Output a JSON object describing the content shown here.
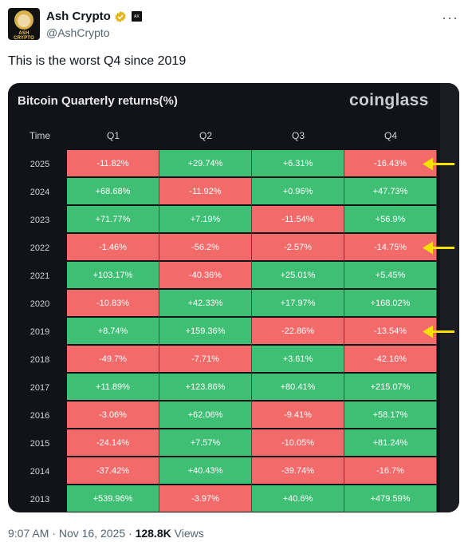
{
  "author": {
    "name": "Ash Crypto",
    "handle": "@AshCrypto",
    "avatar_text": "ASH CRYPTO",
    "affiliate_text": "AX"
  },
  "tweet": {
    "text": "This is the worst Q4 since 2019"
  },
  "chart_data": {
    "type": "table",
    "title": "Bitcoin Quarterly returns(%)",
    "source_logo": "coinglass",
    "columns": [
      "Time",
      "Q1",
      "Q2",
      "Q3",
      "Q4"
    ],
    "rows": [
      {
        "year": "2025",
        "values": [
          "-11.82%",
          "+29.74%",
          "+6.31%",
          "-16.43%"
        ]
      },
      {
        "year": "2024",
        "values": [
          "+68.68%",
          "-11.92%",
          "+0.96%",
          "+47.73%"
        ]
      },
      {
        "year": "2023",
        "values": [
          "+71.77%",
          "+7.19%",
          "-11.54%",
          "+56.9%"
        ]
      },
      {
        "year": "2022",
        "values": [
          "-1.46%",
          "-56.2%",
          "-2.57%",
          "-14.75%"
        ]
      },
      {
        "year": "2021",
        "values": [
          "+103.17%",
          "-40.36%",
          "+25.01%",
          "+5.45%"
        ]
      },
      {
        "year": "2020",
        "values": [
          "-10.83%",
          "+42.33%",
          "+17.97%",
          "+168.02%"
        ]
      },
      {
        "year": "2019",
        "values": [
          "+8.74%",
          "+159.36%",
          "-22.86%",
          "-13.54%"
        ]
      },
      {
        "year": "2018",
        "values": [
          "-49.7%",
          "-7.71%",
          "+3.61%",
          "-42.16%"
        ]
      },
      {
        "year": "2017",
        "values": [
          "+11.89%",
          "+123.86%",
          "+80.41%",
          "+215.07%"
        ]
      },
      {
        "year": "2016",
        "values": [
          "-3.06%",
          "+62.06%",
          "-9.41%",
          "+58.17%"
        ]
      },
      {
        "year": "2015",
        "values": [
          "-24.14%",
          "+7.57%",
          "-10.05%",
          "+81.24%"
        ]
      },
      {
        "year": "2014",
        "values": [
          "-37.42%",
          "+40.43%",
          "-39.74%",
          "-16.7%"
        ]
      },
      {
        "year": "2013",
        "values": [
          "+539.96%",
          "-3.97%",
          "+40.6%",
          "+479.59%"
        ]
      }
    ],
    "highlighted_years": [
      "2025",
      "2022",
      "2019"
    ],
    "colors": {
      "positive": "#3fbf74",
      "negative": "#f36a6a",
      "arrow": "#f5e100"
    }
  },
  "footer": {
    "time": "9:07 AM",
    "date": "Nov 16, 2025",
    "separator": "·",
    "views_count": "128.8K",
    "views_label": "Views"
  },
  "icons": {
    "more": "more-options-icon",
    "verified": "verified-badge-icon"
  }
}
